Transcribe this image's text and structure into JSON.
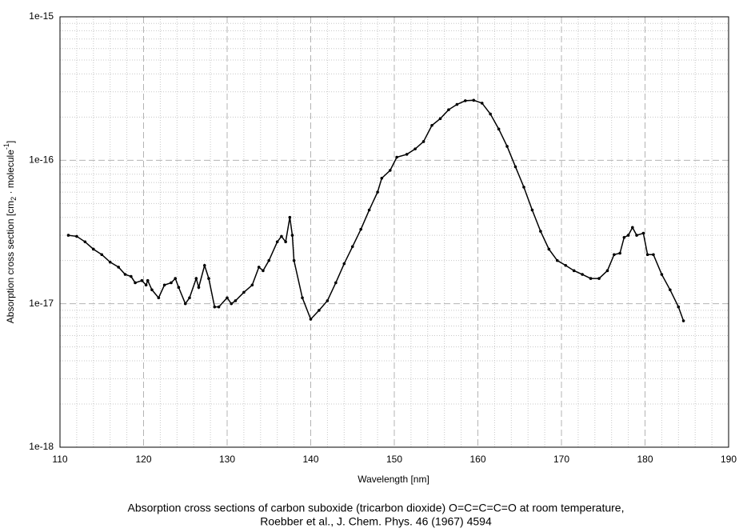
{
  "chart_data": {
    "type": "line",
    "caption": [
      "Absorption cross sections of carbon suboxide (tricarbon dioxide) O=C=C=C=O at room temperature,",
      "Roebber et al.,  J. Chem. Phys. 46 (1967) 4594"
    ],
    "xlabel": "Wavelength [nm]",
    "ylabel": [
      "Absorption cross section [cm",
      "2",
      " · molecule",
      "-1",
      "]"
    ],
    "log_y": true,
    "grid": true,
    "color": "#000000",
    "xlim": [
      110,
      190
    ],
    "xticks": [
      110,
      120,
      130,
      140,
      150,
      160,
      170,
      180,
      190
    ],
    "ylim": [
      1e-18,
      1e-15
    ],
    "yticks": [
      {
        "value": 1e-18,
        "label": "1e-18"
      },
      {
        "value": 1e-17,
        "label": "1e-17"
      },
      {
        "value": 1e-16,
        "label": "1e-16"
      },
      {
        "value": 1e-15,
        "label": "1e-15"
      }
    ],
    "x": [
      111,
      112,
      113,
      114,
      115,
      116,
      117,
      117.8,
      118.5,
      119,
      119.8,
      120.3,
      120.5,
      121,
      121.8,
      122.5,
      123.3,
      123.8,
      124.2,
      125,
      125.5,
      126.3,
      126.6,
      127.3,
      127.8,
      128.5,
      129,
      130,
      130.5,
      131,
      132,
      133,
      133.8,
      134.3,
      135,
      136,
      136.5,
      137,
      137.5,
      137.8,
      138,
      139,
      140,
      141,
      142,
      143,
      144,
      145,
      146,
      147,
      148,
      148.5,
      149.5,
      150.3,
      151.5,
      152.5,
      153.5,
      154.5,
      155.5,
      156.5,
      157.5,
      158.5,
      159.5,
      160.5,
      161.5,
      162.5,
      163.5,
      164.5,
      165.5,
      166.5,
      167.5,
      168.5,
      169.5,
      170.5,
      171.5,
      172.5,
      173.5,
      174.5,
      175.5,
      176.3,
      177,
      177.5,
      178,
      178.5,
      179,
      179.8,
      180.3,
      181,
      182,
      183,
      184,
      184.6
    ],
    "values": [
      3e-17,
      2.95e-17,
      2.7e-17,
      2.4e-17,
      2.2e-17,
      1.95e-17,
      1.8e-17,
      1.6e-17,
      1.55e-17,
      1.4e-17,
      1.45e-17,
      1.35e-17,
      1.45e-17,
      1.25e-17,
      1.1e-17,
      1.35e-17,
      1.4e-17,
      1.5e-17,
      1.3e-17,
      1e-17,
      1.1e-17,
      1.5e-17,
      1.3e-17,
      1.85e-17,
      1.5e-17,
      9.5e-18,
      9.5e-18,
      1.1e-17,
      1e-17,
      1.05e-17,
      1.2e-17,
      1.35e-17,
      1.8e-17,
      1.7e-17,
      2e-17,
      2.7e-17,
      2.95e-17,
      2.7e-17,
      4e-17,
      3e-17,
      2e-17,
      1.1e-17,
      7.8e-18,
      9e-18,
      1.05e-17,
      1.4e-17,
      1.9e-17,
      2.5e-17,
      3.3e-17,
      4.5e-17,
      6e-17,
      7.5e-17,
      8.5e-17,
      1.05e-16,
      1.1e-16,
      1.2e-16,
      1.35e-16,
      1.75e-16,
      1.95e-16,
      2.25e-16,
      2.45e-16,
      2.6e-16,
      2.62e-16,
      2.5e-16,
      2.1e-16,
      1.65e-16,
      1.25e-16,
      9e-17,
      6.5e-17,
      4.5e-17,
      3.2e-17,
      2.4e-17,
      2e-17,
      1.85e-17,
      1.7e-17,
      1.6e-17,
      1.5e-17,
      1.5e-17,
      1.7e-17,
      2.2e-17,
      2.25e-17,
      2.9e-17,
      3e-17,
      3.4e-17,
      3e-17,
      3.1e-17,
      2.2e-17,
      2.2e-17,
      1.6e-17,
      1.25e-17,
      9.5e-18,
      7.6e-18
    ]
  }
}
